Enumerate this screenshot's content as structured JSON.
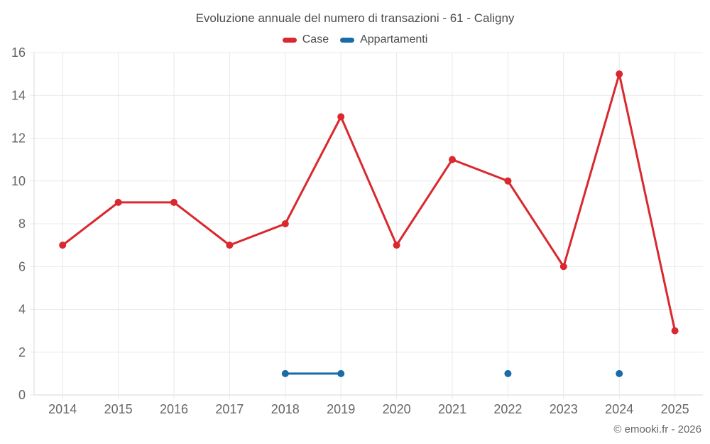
{
  "chart_data": {
    "type": "line",
    "title": "Evoluzione annuale del numero di transazioni - 61 - Caligny",
    "categories": [
      "2014",
      "2015",
      "2016",
      "2017",
      "2018",
      "2019",
      "2020",
      "2021",
      "2022",
      "2023",
      "2024",
      "2025"
    ],
    "series": [
      {
        "name": "Case",
        "color": "#d9282e",
        "values": [
          7,
          9,
          9,
          7,
          8,
          13,
          7,
          11,
          10,
          6,
          15,
          3
        ]
      },
      {
        "name": "Appartamenti",
        "color": "#1a6ca8",
        "values": [
          null,
          null,
          null,
          null,
          1,
          1,
          null,
          null,
          1,
          null,
          1,
          null
        ]
      }
    ],
    "xlabel": "",
    "ylabel": "",
    "yticks": [
      0,
      2,
      4,
      6,
      8,
      10,
      12,
      14,
      16
    ],
    "ylim": [
      0,
      16
    ],
    "grid": true,
    "legend_position": "top",
    "colors": {
      "grid_line": "#e8e8e8",
      "axis_line": "#d9d9d9",
      "axis_label_text": "#666666",
      "title_text": "#4c4c4c"
    }
  },
  "footer": {
    "credit": "© emooki.fr - 2026"
  }
}
